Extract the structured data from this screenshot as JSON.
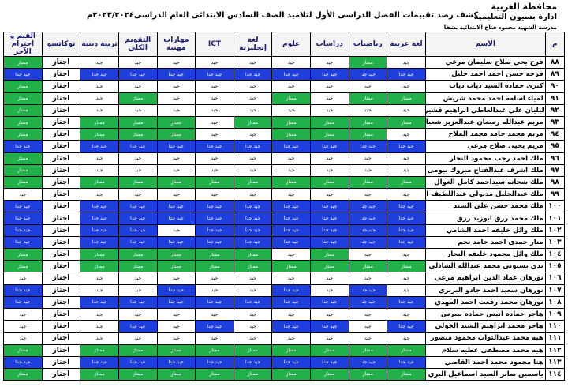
{
  "header": {
    "governorate": "محافظة الغربية",
    "administration": "ادارة بسيون التعليمية",
    "school": "مدرسة الشهيد محمود فتاح الابتدائية بشفا",
    "title": "كشف رصد تقييمات الفصل الدراسى الأول لتلاميذ الصف السادس الابتدائى العام الدراسى٢٠٢٣/٢٠٢٤م"
  },
  "table": {
    "columns": [
      "م",
      "الاسم",
      "لغة عربية",
      "رياضيات",
      "دراسات",
      "علوم",
      "لغة إنجليزية",
      "ICT",
      "مهارات مهنية",
      "التقويم الكلي",
      "تربية دينية",
      "توكاتسو",
      "القيم و احترام الآخر"
    ],
    "levels": [
      {
        "label": "ممتاز",
        "color": "#22b04b"
      },
      {
        "label": "جيد جدا",
        "color": "#1e3fdc"
      },
      {
        "label": "جيد",
        "color": "#ffffff"
      },
      {
        "label": "اجتاز",
        "color": "#ffffff"
      }
    ],
    "rows": [
      {
        "num": "٨٨",
        "name": "فرح يحي صلاح سليمان مرعي",
        "grades": [
          "جيد",
          "ممتاز",
          "جيد",
          "جيد",
          "جيد",
          "جيد",
          "جيد",
          "جيد",
          "جيد",
          "اجتاز",
          "ممتاز"
        ]
      },
      {
        "num": "٨٩",
        "name": "فرحه حسن احمد احمد خليل",
        "grades": [
          "جيد جدا",
          "جيد جدا",
          "جيد جدا",
          "جيد جدا",
          "جيد جدا",
          "جيد جدا",
          "جيد جدا",
          "جيد جدا",
          "جيد جدا",
          "اجتاز",
          "جيد جدا"
        ]
      },
      {
        "num": "٩٠",
        "name": "كنزى حماده السيد دياب دياب",
        "grades": [
          "جيد",
          "جيد",
          "جيد",
          "جيد",
          "جيد",
          "جيد",
          "جيد",
          "جيد",
          "جيد",
          "اجتاز",
          "ممتاز"
        ]
      },
      {
        "num": "٩١",
        "name": "لمياء اسامه احمد محمد شريش",
        "grades": [
          "ممتاز",
          "ممتاز",
          "جيد",
          "ممتاز",
          "جيد",
          "جيد",
          "جيد",
          "ممتاز",
          "جيد",
          "اجتاز",
          "ممتاز"
        ]
      },
      {
        "num": "٩٢",
        "name": "ليليان علي عبدالعاطي ابراهيم قشير",
        "grades": [
          "جيد",
          "جيد",
          "جيد",
          "جيد",
          "جيد",
          "جيد",
          "جيد",
          "جيد",
          "جيد",
          "اجتاز",
          "ممتاز"
        ]
      },
      {
        "num": "٩٣",
        "name": "مريم عبدالله رمضان عبدالعزيز شعبان",
        "grades": [
          "ممتاز",
          "ممتاز",
          "ممتاز",
          "ممتاز",
          "ممتاز",
          "جيد",
          "ممتاز",
          "ممتاز",
          "ممتاز",
          "اجتاز",
          "ممتاز"
        ]
      },
      {
        "num": "٩٤",
        "name": "مريم محمد حامد محمد الملاح",
        "grades": [
          "جيد",
          "ممتاز",
          "ممتاز",
          "ممتاز",
          "جيد",
          "جيد",
          "ممتاز",
          "ممتاز",
          "ممتاز",
          "اجتاز",
          "ممتاز"
        ]
      },
      {
        "num": "٩٥",
        "name": "مريم يحيى صلاح مرعي",
        "grades": [
          "جيد جدا",
          "جيد جدا",
          "جيد جدا",
          "جيد جدا",
          "جيد جدا",
          "جيد جدا",
          "جيد جدا",
          "جيد جدا",
          "جيد جدا",
          "اجتاز",
          "جيد جدا"
        ]
      },
      {
        "num": "٩٦",
        "name": "ملك احمد رجب محمود النجار",
        "grades": [
          "جيد",
          "جيد",
          "جيد",
          "جيد",
          "جيد",
          "جيد",
          "جيد",
          "جيد",
          "جيد",
          "اجتاز",
          "ممتاز"
        ]
      },
      {
        "num": "٩٧",
        "name": "ملك اشرف عبدالفتاح مبروك بيومى",
        "grades": [
          "جيد",
          "جيد",
          "جيد",
          "جيد",
          "جيد",
          "جيد",
          "جيد",
          "جيد",
          "جيد",
          "اجتاز",
          "ممتاز"
        ]
      },
      {
        "num": "٩٨",
        "name": "ملك شحاته سيداحمد كامل الغوال",
        "grades": [
          "ممتاز",
          "ممتاز",
          "ممتاز",
          "ممتاز",
          "ممتاز",
          "ممتاز",
          "ممتاز",
          "ممتاز",
          "ممتاز",
          "اجتاز",
          "ممتاز"
        ]
      },
      {
        "num": "٩٩",
        "name": "ملك عبدالجليل مدبولي عبداللطيف العربي",
        "grades": [
          "جيد",
          "جيد",
          "جيد",
          "جيد",
          "جيد",
          "جيد",
          "جيد",
          "جيد",
          "جيد",
          "اجتاز",
          "جيد"
        ]
      },
      {
        "num": "١٠٠",
        "name": "ملك محمد حسن علي السيد",
        "grades": [
          "جيد جدا",
          "جيد جدا",
          "جيد جدا",
          "جيد جدا",
          "جيد جدا",
          "جيد جدا",
          "جيد جدا",
          "جيد جدا",
          "جيد جدا",
          "اجتاز",
          "جيد جدا"
        ]
      },
      {
        "num": "١٠١",
        "name": "ملك محمد رزق ابوزيد رزق",
        "grades": [
          "جيد جدا",
          "جيد جدا",
          "جيد جدا",
          "جيد جدا",
          "جيد جدا",
          "جيد جدا",
          "جيد جدا",
          "جيد جدا",
          "جيد جدا",
          "اجتاز",
          "جيد جدا"
        ]
      },
      {
        "num": "١٠٢",
        "name": "ملك وائل خليفه احمد الشامي",
        "grades": [
          "جيد جدا",
          "جيد جدا",
          "جيد جدا",
          "جيد جدا",
          "جيد جدا",
          "جيد جدا",
          "جيد",
          "جيد جدا",
          "جيد جدا",
          "اجتاز",
          "جيد جدا"
        ]
      },
      {
        "num": "١٠٣",
        "name": "منار حمدى احمد حامد نجم",
        "grades": [
          "جيد جدا",
          "جيد جدا",
          "جيد جدا",
          "جيد جدا",
          "جيد جدا",
          "جيد جدا",
          "جيد جدا",
          "جيد جدا",
          "جيد جدا",
          "اجتاز",
          "جيد جدا"
        ]
      },
      {
        "num": "١٠٤",
        "name": "ملك وائل محمود خليفه النجار",
        "grades": [
          "جيد",
          "جيد",
          "ممتاز",
          "جيد",
          "ممتاز",
          "ممتاز",
          "ممتاز",
          "ممتاز",
          "ممتاز",
          "اجتاز",
          "ممتاز"
        ]
      },
      {
        "num": "١٠٥",
        "name": "ندي بسيوني محمد عبدالله الشاذلي",
        "grades": [
          "ممتاز",
          "ممتاز",
          "ممتاز",
          "ممتاز",
          "ممتاز",
          "ممتاز",
          "ممتاز",
          "ممتاز",
          "ممتاز",
          "اجتاز",
          "ممتاز"
        ]
      },
      {
        "num": "١٠٦",
        "name": "نورهان عماد الدين ابراهيم مرعي",
        "grades": [
          "جيد",
          "جيد",
          "جيد",
          "جيد",
          "جيد",
          "جيد",
          "جيد",
          "جيد",
          "جيد",
          "اجتاز",
          "جيد"
        ]
      },
      {
        "num": "١٠٧",
        "name": "نورهان سعيد احمد جادو البربري",
        "grades": [
          "جيد",
          "جيد جدا",
          "جيد",
          "جيد جدا",
          "جيد",
          "جيد",
          "جيد جدا",
          "جيد",
          "جيد",
          "اجتاز",
          "جيد جدا"
        ]
      },
      {
        "num": "١٠٨",
        "name": "نورهان محمد رفعت احمد المهدي",
        "grades": [
          "جيد جدا",
          "جيد جدا",
          "جيد جدا",
          "جيد جدا",
          "جيد جدا",
          "جيد جدا",
          "جيد جدا",
          "جيد جدا",
          "جيد جدا",
          "اجتاز",
          "جيد جدا"
        ]
      },
      {
        "num": "١٠٩",
        "name": "هاجر حماده انيس حماده بيبرس",
        "grades": [
          "جيد",
          "جيد",
          "جيد",
          "جيد",
          "جيد",
          "جيد",
          "جيد",
          "جيد",
          "جيد",
          "اجتاز",
          "جيد"
        ]
      },
      {
        "num": "١١٠",
        "name": "هاجر محمد ابراهيم السيد الخولي",
        "grades": [
          "جيد جدا",
          "جيد",
          "جيد جدا",
          "جيد جدا",
          "جيد",
          "جيد جدا",
          "جيد",
          "جيد جدا",
          "جيد",
          "اجتاز",
          "جيد"
        ]
      },
      {
        "num": "١١١",
        "name": "هبه محمد عبدالتواب محمود منصور",
        "grades": [
          "جيد",
          "جيد",
          "جيد",
          "جيد",
          "جيد",
          "جيد",
          "جيد",
          "جيد",
          "جيد",
          "اجتاز",
          "جيد"
        ]
      },
      {
        "num": "١١٢",
        "name": "هيه محمد مصطفى عطيه سلام",
        "grades": [
          "ممتاز",
          "ممتاز",
          "ممتاز",
          "ممتاز",
          "ممتاز",
          "ممتاز",
          "ممتاز",
          "ممتاز",
          "ممتاز",
          "اجتاز",
          "ممتاز"
        ]
      },
      {
        "num": "١١٣",
        "name": "هنا محمود محمد احمد القاضي",
        "grades": [
          "جيد جدا",
          "جيد جدا",
          "جيد جدا",
          "جيد جدا",
          "جيد جدا",
          "جيد جدا",
          "جيد جدا",
          "جيد جدا",
          "جيد جدا",
          "اجتاز",
          "جيد جدا"
        ]
      },
      {
        "num": "١١٤",
        "name": "ياسمين صابر السيد اسماعيل البري",
        "grades": [
          "ممتاز",
          "ممتاز",
          "ممتاز",
          "ممتاز",
          "ممتاز",
          "ممتاز",
          "ممتاز",
          "ممتاز",
          "ممتاز",
          "اجتاز",
          "ممتاز"
        ]
      }
    ]
  }
}
